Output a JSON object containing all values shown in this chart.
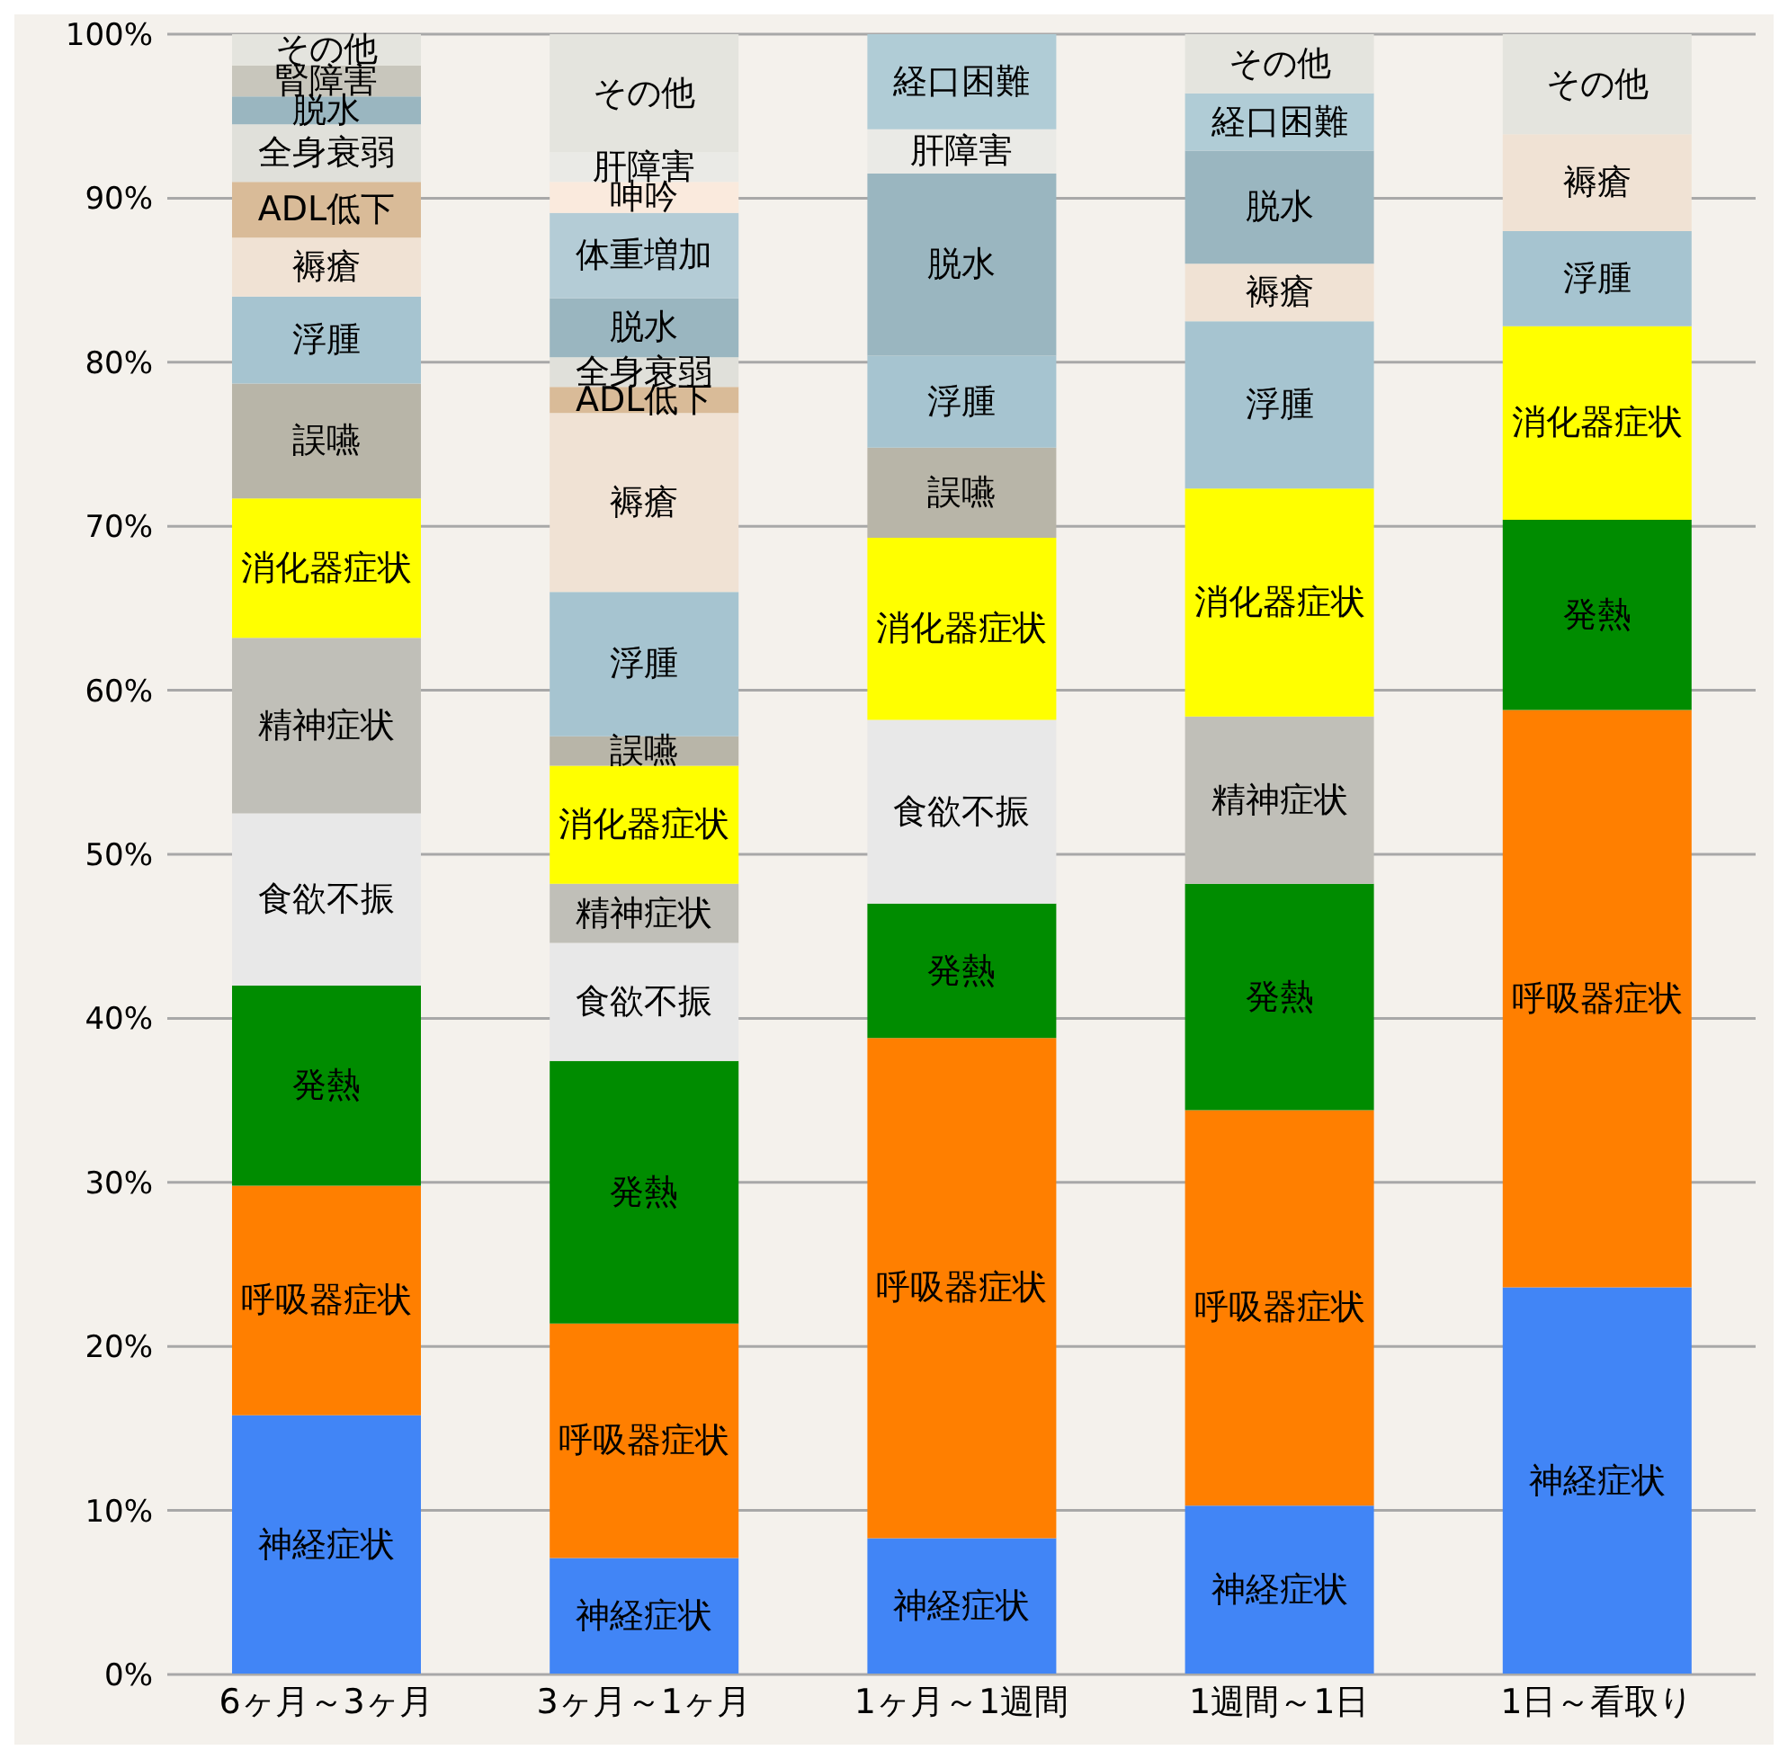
{
  "chart_data": {
    "type": "bar",
    "stacked": true,
    "categories": [
      "6ヶ月～3ヶ月",
      "3ヶ月～1ヶ月",
      "1ヶ月～1週間",
      "1週間～1日",
      "1日～看取り"
    ],
    "ylim": [
      0,
      100
    ],
    "yticks": [
      {
        "value": 0,
        "label": "0%"
      },
      {
        "value": 10,
        "label": "10%"
      },
      {
        "value": 20,
        "label": "20%"
      },
      {
        "value": 30,
        "label": "30%"
      },
      {
        "value": 40,
        "label": "40%"
      },
      {
        "value": 50,
        "label": "50%"
      },
      {
        "value": 60,
        "label": "60%"
      },
      {
        "value": 70,
        "label": "70%"
      },
      {
        "value": 80,
        "label": "80%"
      },
      {
        "value": 90,
        "label": "90%"
      },
      {
        "value": 100,
        "label": "100%"
      }
    ],
    "grid": "y",
    "legend": false,
    "series": [
      {
        "name": "神経症状",
        "color": "#4185f6",
        "values": [
          15.8,
          7.1,
          8.3,
          10.3,
          23.6
        ]
      },
      {
        "name": "呼吸器症状",
        "color": "#ff7f00",
        "values": [
          14.0,
          14.3,
          30.5,
          24.1,
          35.2
        ]
      },
      {
        "name": "発熱",
        "color": "#008c00",
        "values": [
          12.2,
          16.0,
          8.2,
          13.8,
          11.6
        ]
      },
      {
        "name": "食欲不振",
        "color": "#e8e8e8",
        "values": [
          10.5,
          7.2,
          11.2,
          null,
          null
        ]
      },
      {
        "name": "精神症状",
        "color": "#c0bfb8",
        "values": [
          10.7,
          3.6,
          null,
          10.2,
          null
        ]
      },
      {
        "name": "消化器症状",
        "color": "#ffff00",
        "values": [
          8.5,
          7.2,
          11.1,
          13.9,
          11.8
        ]
      },
      {
        "name": "誤嚥",
        "color": "#b8b5a8",
        "values": [
          7.0,
          1.8,
          5.5,
          null,
          null
        ]
      },
      {
        "name": "浮腫",
        "color": "#a6c4d0",
        "values": [
          5.3,
          8.8,
          5.6,
          10.2,
          5.8
        ]
      },
      {
        "name": "褥瘡",
        "color": "#f0e2d4",
        "values": [
          3.6,
          10.9,
          null,
          3.5,
          5.9
        ]
      },
      {
        "name": "ADL低下",
        "color": "#d9bb98",
        "values": [
          3.4,
          1.6,
          null,
          null,
          null
        ]
      },
      {
        "name": "全身衰弱",
        "color": "#e0e0da",
        "values": [
          3.5,
          1.8,
          null,
          null,
          null
        ]
      },
      {
        "name": "脱水",
        "color": "#9ab6c0",
        "values": [
          1.7,
          3.6,
          11.1,
          6.9,
          null
        ]
      },
      {
        "name": "腎障害",
        "color": "#c8c6bc",
        "values": [
          1.9,
          null,
          null,
          null,
          null
        ]
      },
      {
        "name": "体重増加",
        "color": "#b4ccd6",
        "values": [
          null,
          5.2,
          null,
          null,
          null
        ]
      },
      {
        "name": "呻吟",
        "color": "#faeadd",
        "values": [
          null,
          1.9,
          null,
          null,
          null
        ]
      },
      {
        "name": "肝障害",
        "color": "#eaeae6",
        "values": [
          null,
          1.8,
          2.7,
          null,
          null
        ]
      },
      {
        "name": "経口困難",
        "color": "#b0ccd6",
        "values": [
          null,
          null,
          5.8,
          3.5,
          null
        ]
      },
      {
        "name": "その他",
        "color": "#e4e4de",
        "values": [
          1.9,
          7.3,
          null,
          3.6,
          6.1
        ]
      }
    ]
  }
}
